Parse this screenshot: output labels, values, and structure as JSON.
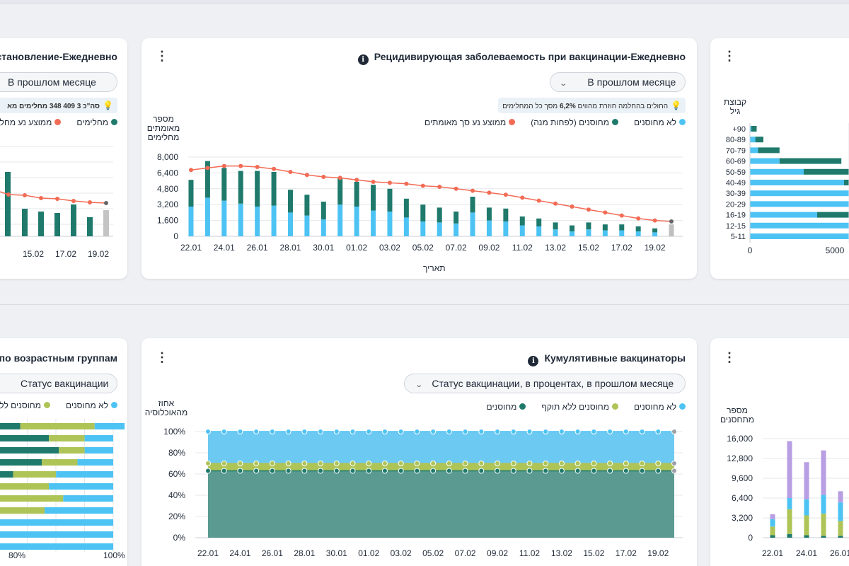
{
  "colors": {
    "light_blue": "#4dc3f4",
    "dark_teal": "#1f7a6c",
    "olive": "#aec457",
    "lavender": "#b89ee3",
    "coral": "#f26b55",
    "grey": "#bfbfbf",
    "dark_grey": "#666666"
  },
  "cards": {
    "left_top": {
      "title": "становление-Ежедневно",
      "period": "В прошлом месяце",
      "hint": "סה\"כ 3 409 348 מחלימים מא",
      "legend": [
        "מחלימים",
        "ממוצע נע מחלי"
      ],
      "xticks": [
        "15.02",
        "17.02",
        "19.02"
      ]
    },
    "main_top": {
      "title": "Рецидивирующая заболеваемость при вакцинации-Ежедневно",
      "period": "В прошлом месяце",
      "hint_pre": "החולים בהחלמה חוזרת מהווים",
      "hint_value": "6,2%",
      "hint_post": "מסך כל המחלימים",
      "legend": [
        "לא מחוסנים",
        "מחוסנים (לפחות מנה)",
        "ממוצע נע סך מאומתים"
      ],
      "ylabel": [
        "מספר",
        "מאומתים",
        "מחלימים"
      ],
      "xlabel": "תאריך"
    },
    "right_top": {
      "ylabel": [
        "קבוצת",
        "גיל"
      ],
      "age_groups": [
        "+90",
        "80-89",
        "70-79",
        "60-69",
        "50-59",
        "40-49",
        "30-39",
        "20-29",
        "16-19",
        "12-15",
        "5-11"
      ],
      "xticks": [
        "0",
        "5000"
      ]
    },
    "left_bottom": {
      "title": "по возрастным группам",
      "filter": "Статус вакцинации",
      "legend": [
        "לא מחוסנים",
        "מחוסנים ללא ת"
      ],
      "xticks": [
        "80%",
        "100%"
      ]
    },
    "main_bottom": {
      "title": "Кумулятивные вакцинаторы",
      "filter": "Статус вакцинации, в процентах, в прошлом месяце",
      "legend": [
        "לא מחוסנים",
        "מחוסנים ללא תוקף",
        "מחוסנים"
      ],
      "ylabel": [
        "אחוז",
        "מהאוכלוסיה"
      ]
    },
    "right_bottom": {
      "ylabel": [
        "מספר",
        "מתחסנים"
      ],
      "yticks": [
        "16,000",
        "12,800",
        "9,600",
        "6,400",
        "3,200",
        "0"
      ],
      "xticks": [
        "22.01",
        "24.01",
        "26.01"
      ]
    }
  },
  "chart_data": [
    {
      "type": "bar",
      "title": "Рецидивирующая заболеваемость при вакцинации-Ежедневно",
      "xlabel": "תאריך",
      "ylabel": "מספר מאומתים מחלימים",
      "ylim": [
        0,
        8000
      ],
      "yticks": [
        "8,000",
        "6,400",
        "4,800",
        "3,200",
        "1,600",
        "0"
      ],
      "x_tick_labels": [
        "22.01",
        "24.01",
        "26.01",
        "28.01",
        "30.01",
        "01.02",
        "03.02",
        "05.02",
        "07.02",
        "09.02",
        "11.02",
        "13.02",
        "15.02",
        "17.02",
        "19.02"
      ],
      "categories": [
        "22.01",
        "23.01",
        "24.01",
        "25.01",
        "26.01",
        "27.01",
        "28.01",
        "29.01",
        "30.01",
        "31.01",
        "01.02",
        "02.02",
        "03.02",
        "04.02",
        "05.02",
        "06.02",
        "07.02",
        "08.02",
        "09.02",
        "10.02",
        "11.02",
        "12.02",
        "13.02",
        "14.02",
        "15.02",
        "16.02",
        "17.02",
        "18.02",
        "19.02",
        "20.02"
      ],
      "stacked": true,
      "series": [
        {
          "name": "לא מחוסנים",
          "values": [
            3000,
            3900,
            3600,
            3300,
            3000,
            3100,
            2400,
            2100,
            1700,
            3200,
            3000,
            2600,
            2500,
            1900,
            1500,
            1400,
            1300,
            2400,
            1600,
            1500,
            1100,
            1000,
            700,
            500,
            700,
            600,
            600,
            500,
            400,
            300
          ]
        },
        {
          "name": "מחוסנים (לפחות מנה)",
          "values": [
            2700,
            3700,
            3300,
            3300,
            3600,
            3400,
            2300,
            2100,
            1800,
            2700,
            2500,
            2600,
            2300,
            1900,
            1700,
            1500,
            1200,
            1600,
            1300,
            1300,
            900,
            800,
            700,
            600,
            700,
            600,
            600,
            500,
            400,
            300
          ]
        },
        {
          "name": "ממוצע נע סך מאומתים",
          "type": "line",
          "values": [
            6700,
            6900,
            7100,
            7100,
            7000,
            6800,
            6500,
            6200,
            6000,
            5900,
            5700,
            5500,
            5400,
            5300,
            5100,
            5000,
            4800,
            4600,
            4400,
            4200,
            3900,
            3600,
            3300,
            3000,
            2700,
            2400,
            2100,
            1800,
            1600,
            1500
          ]
        }
      ],
      "partial_last": {
        "bar": 1200,
        "line": 1500
      }
    },
    {
      "type": "area",
      "title": "Кумулятивные вакцинаторы",
      "ylabel": "אחוז מהאוכלוסיה",
      "ylim": [
        0,
        100
      ],
      "yticks": [
        "100%",
        "80%",
        "60%",
        "40%",
        "20%",
        "0%"
      ],
      "x_tick_labels": [
        "22.01",
        "24.01",
        "26.01",
        "28.01",
        "30.01",
        "01.02",
        "03.02",
        "05.02",
        "07.02",
        "09.02",
        "11.02",
        "13.02",
        "15.02",
        "17.02",
        "19.02"
      ],
      "points": 30,
      "series": [
        {
          "name": "מחוסנים",
          "value": 63
        },
        {
          "name": "מחוסנים ללא תוקף",
          "value": 70
        },
        {
          "name": "לא מחוסנים",
          "value": 100
        }
      ]
    }
  ]
}
